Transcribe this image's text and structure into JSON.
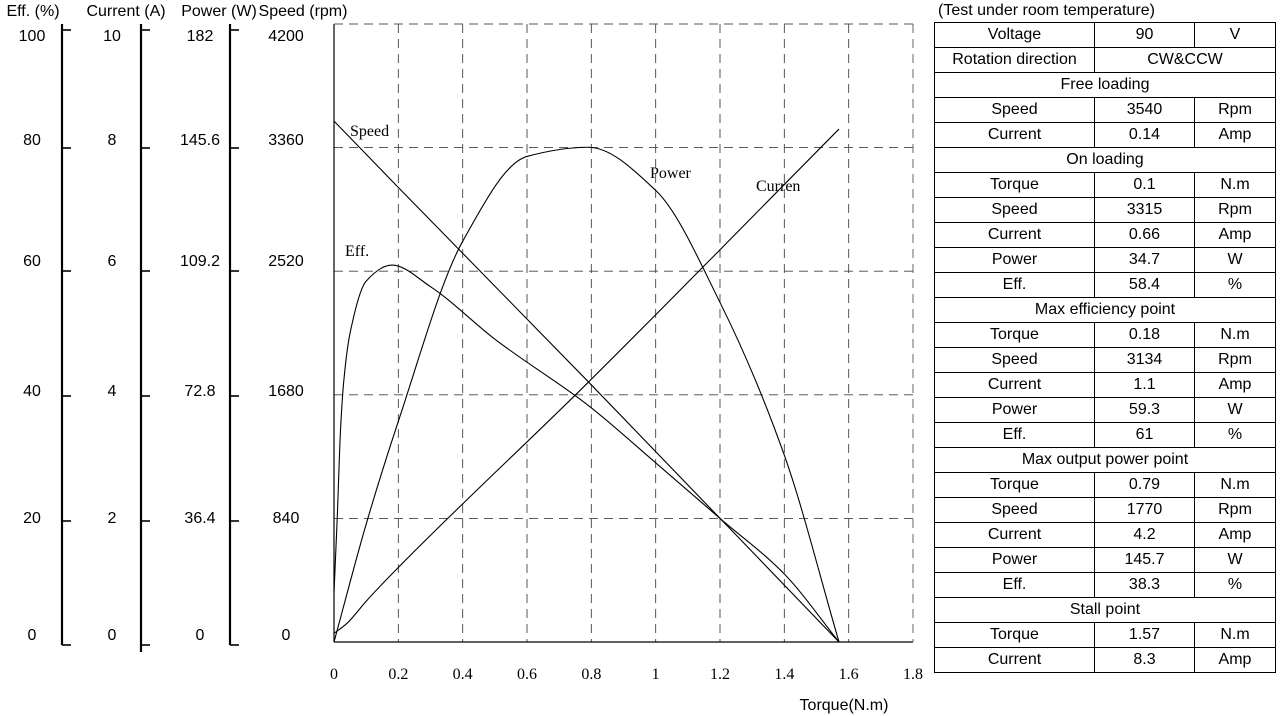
{
  "chart_data": {
    "type": "line",
    "x": {
      "label": "Torque(N.m)",
      "range": [
        0,
        1.8
      ],
      "ticks": [
        0,
        0.2,
        0.4,
        0.6,
        0.8,
        1,
        1.2,
        1.4,
        1.6,
        1.8
      ],
      "tick_labels": [
        "0",
        "0.2",
        "0.4",
        "0.6",
        "0.8",
        "1",
        "1.2",
        "1.4",
        "1.6",
        "1.8"
      ]
    },
    "grid": true,
    "axes": [
      {
        "key": "eff",
        "label": "Eff. (%)",
        "range": [
          0,
          100
        ],
        "tick_labels": [
          "100",
          "80",
          "60",
          "40",
          "20",
          "0"
        ]
      },
      {
        "key": "current",
        "label": "Current (A)",
        "range": [
          0,
          10
        ],
        "tick_labels": [
          "10",
          "8",
          "6",
          "4",
          "2",
          "0"
        ]
      },
      {
        "key": "power",
        "label": "Power (W)",
        "range": [
          0,
          182
        ],
        "tick_labels": [
          "182",
          "145.6",
          "109.2",
          "72.8",
          "36.4",
          "0"
        ]
      },
      {
        "key": "speed",
        "label": "Speed (rpm)",
        "range": [
          0,
          4200
        ],
        "tick_labels": [
          "4200",
          "3360",
          "2520",
          "1680",
          "840",
          "0"
        ]
      }
    ],
    "series": [
      {
        "name": "Speed",
        "axis": "speed",
        "points": [
          [
            0,
            3540
          ],
          [
            0.1,
            3315
          ],
          [
            0.18,
            3134
          ],
          [
            0.79,
            1770
          ],
          [
            1.57,
            0
          ]
        ]
      },
      {
        "name": "Power",
        "axis": "power",
        "points": [
          [
            0,
            0
          ],
          [
            0.1,
            34.7
          ],
          [
            0.2,
            65
          ],
          [
            0.4,
            118
          ],
          [
            0.6,
            143
          ],
          [
            0.79,
            145.7
          ],
          [
            1.0,
            133
          ],
          [
            1.2,
            100
          ],
          [
            1.4,
            55
          ],
          [
            1.57,
            0
          ]
        ]
      },
      {
        "name": "Curren",
        "axis": "current",
        "points": [
          [
            0,
            0.14
          ],
          [
            0.04,
            0.3
          ],
          [
            0.1,
            0.66
          ],
          [
            0.18,
            1.1
          ],
          [
            0.79,
            4.2
          ],
          [
            1.57,
            8.3
          ]
        ]
      },
      {
        "name": "Eff.",
        "axis": "eff",
        "points": [
          [
            0,
            8
          ],
          [
            0.01,
            20
          ],
          [
            0.02,
            34
          ],
          [
            0.03,
            42
          ],
          [
            0.05,
            50
          ],
          [
            0.1,
            58.4
          ],
          [
            0.18,
            61
          ],
          [
            0.3,
            57.5
          ],
          [
            0.5,
            49
          ],
          [
            0.79,
            38.3
          ],
          [
            1.0,
            29
          ],
          [
            1.2,
            20
          ],
          [
            1.4,
            11
          ],
          [
            1.57,
            0
          ]
        ]
      }
    ]
  },
  "spec_table": {
    "caption": "(Test under room temperature)",
    "rows": [
      {
        "kind": "row",
        "cells": [
          "Voltage",
          "90",
          "V"
        ]
      },
      {
        "kind": "wide",
        "cells": [
          "Rotation direction",
          "CW&CCW"
        ]
      },
      {
        "kind": "section",
        "cells": [
          "Free loading"
        ]
      },
      {
        "kind": "row",
        "cells": [
          "Speed",
          "3540",
          "Rpm"
        ]
      },
      {
        "kind": "row",
        "cells": [
          "Current",
          "0.14",
          "Amp"
        ]
      },
      {
        "kind": "section",
        "cells": [
          "On loading"
        ]
      },
      {
        "kind": "row",
        "cells": [
          "Torque",
          "0.1",
          "N.m"
        ]
      },
      {
        "kind": "row",
        "cells": [
          "Speed",
          "3315",
          "Rpm"
        ]
      },
      {
        "kind": "row",
        "cells": [
          "Current",
          "0.66",
          "Amp"
        ]
      },
      {
        "kind": "row",
        "cells": [
          "Power",
          "34.7",
          "W"
        ]
      },
      {
        "kind": "row",
        "cells": [
          "Eff.",
          "58.4",
          "%"
        ]
      },
      {
        "kind": "section",
        "cells": [
          "Max efficiency point"
        ]
      },
      {
        "kind": "row",
        "cells": [
          "Torque",
          "0.18",
          "N.m"
        ]
      },
      {
        "kind": "row",
        "cells": [
          "Speed",
          "3134",
          "Rpm"
        ]
      },
      {
        "kind": "row",
        "cells": [
          "Current",
          "1.1",
          "Amp"
        ]
      },
      {
        "kind": "row",
        "cells": [
          "Power",
          "59.3",
          "W"
        ]
      },
      {
        "kind": "row",
        "cells": [
          "Eff.",
          "61",
          "%"
        ]
      },
      {
        "kind": "section",
        "cells": [
          "Max output power point"
        ]
      },
      {
        "kind": "row",
        "cells": [
          "Torque",
          "0.79",
          "N.m"
        ]
      },
      {
        "kind": "row",
        "cells": [
          "Speed",
          "1770",
          "Rpm"
        ]
      },
      {
        "kind": "row",
        "cells": [
          "Current",
          "4.2",
          "Amp"
        ]
      },
      {
        "kind": "row",
        "cells": [
          "Power",
          "145.7",
          "W"
        ]
      },
      {
        "kind": "row",
        "cells": [
          "Eff.",
          "38.3",
          "%"
        ]
      },
      {
        "kind": "section",
        "cells": [
          "Stall point"
        ]
      },
      {
        "kind": "row",
        "cells": [
          "Torque",
          "1.57",
          "N.m"
        ]
      },
      {
        "kind": "row",
        "cells": [
          "Current",
          "8.3",
          "Amp"
        ]
      }
    ]
  }
}
